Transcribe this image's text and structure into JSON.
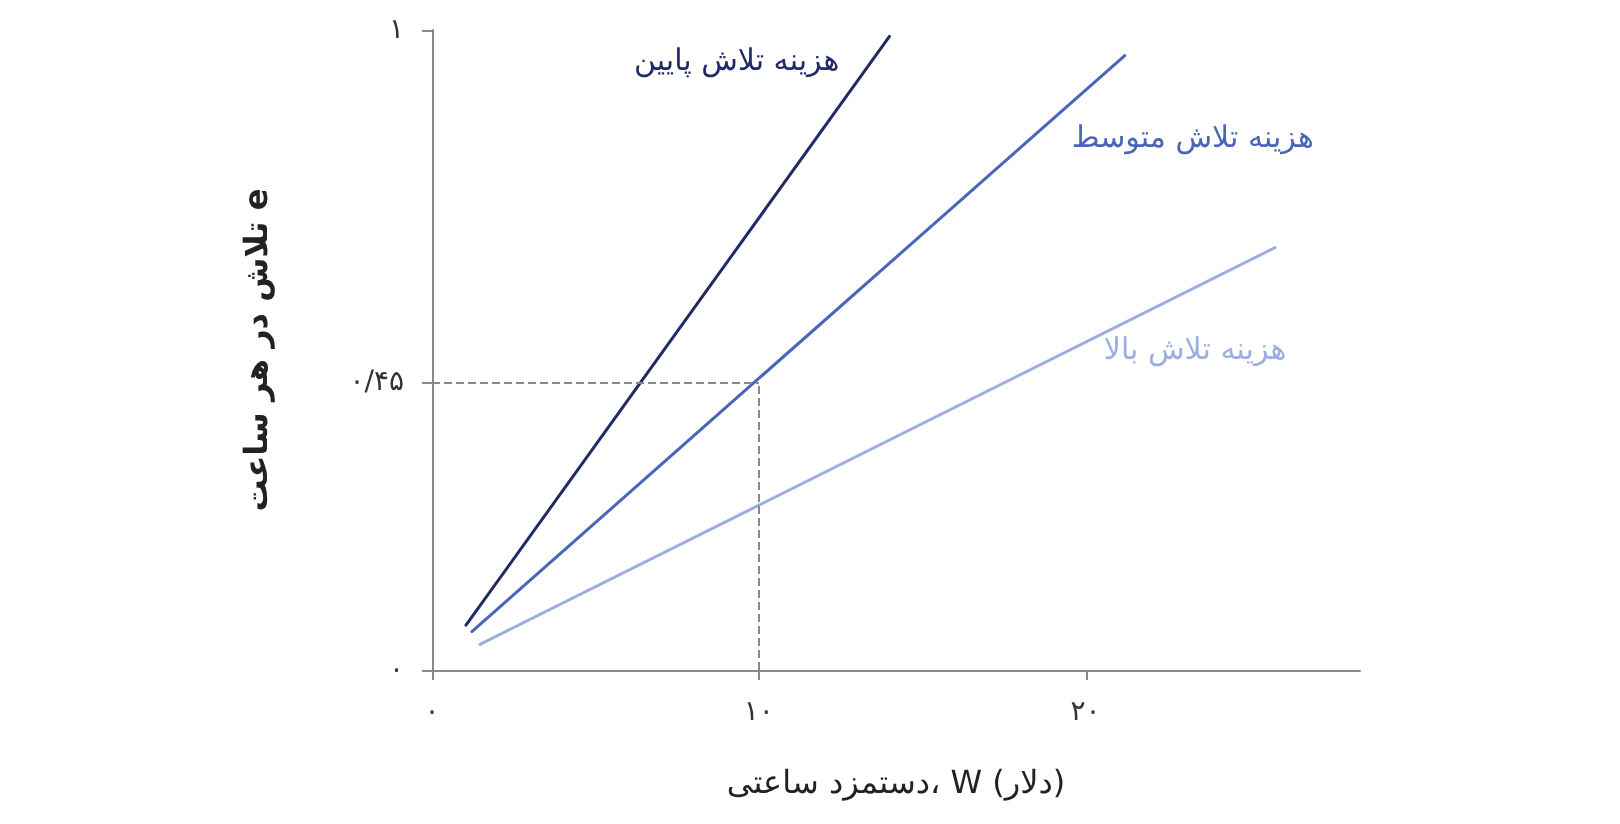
{
  "chart_data": {
    "type": "line",
    "xlabel": "دستمزد ساعتی، W (دلار)",
    "ylabel": "تلاش در هر ساعت e",
    "xlim": [
      0,
      28.4
    ],
    "ylim": [
      0,
      1
    ],
    "xticks": [
      {
        "value": 0,
        "label": "۰"
      },
      {
        "value": 10,
        "label": "۱۰"
      },
      {
        "value": 20,
        "label": "۲۰"
      }
    ],
    "yticks": [
      {
        "value": 0,
        "label": "۰"
      },
      {
        "value": 0.45,
        "label": "۰/۴۵"
      },
      {
        "value": 1,
        "label": "۱"
      }
    ],
    "series": [
      {
        "name": "هزینه تلاش پایین",
        "color": "#1f2a66",
        "x": [
          1.04,
          14.0
        ],
        "values": [
          0.07,
          0.99
        ]
      },
      {
        "name": "هزینه تلاش متوسط",
        "color": "#4a65b8",
        "x": [
          1.22,
          21.2
        ],
        "values": [
          0.06,
          0.96
        ]
      },
      {
        "name": "هزینه تلاش بالا",
        "color": "#9aaedf",
        "x": [
          1.47,
          25.8
        ],
        "values": [
          0.04,
          0.66
        ]
      }
    ],
    "ref_lines": [
      {
        "axis": "x",
        "value": 10,
        "color": "#888888",
        "line_style": "dashed"
      },
      {
        "axis": "y",
        "value": 0.45,
        "color": "#888888",
        "line_style": "dashed"
      }
    ],
    "marker": "none",
    "line_style": "solid",
    "grid": false,
    "legend": false
  }
}
